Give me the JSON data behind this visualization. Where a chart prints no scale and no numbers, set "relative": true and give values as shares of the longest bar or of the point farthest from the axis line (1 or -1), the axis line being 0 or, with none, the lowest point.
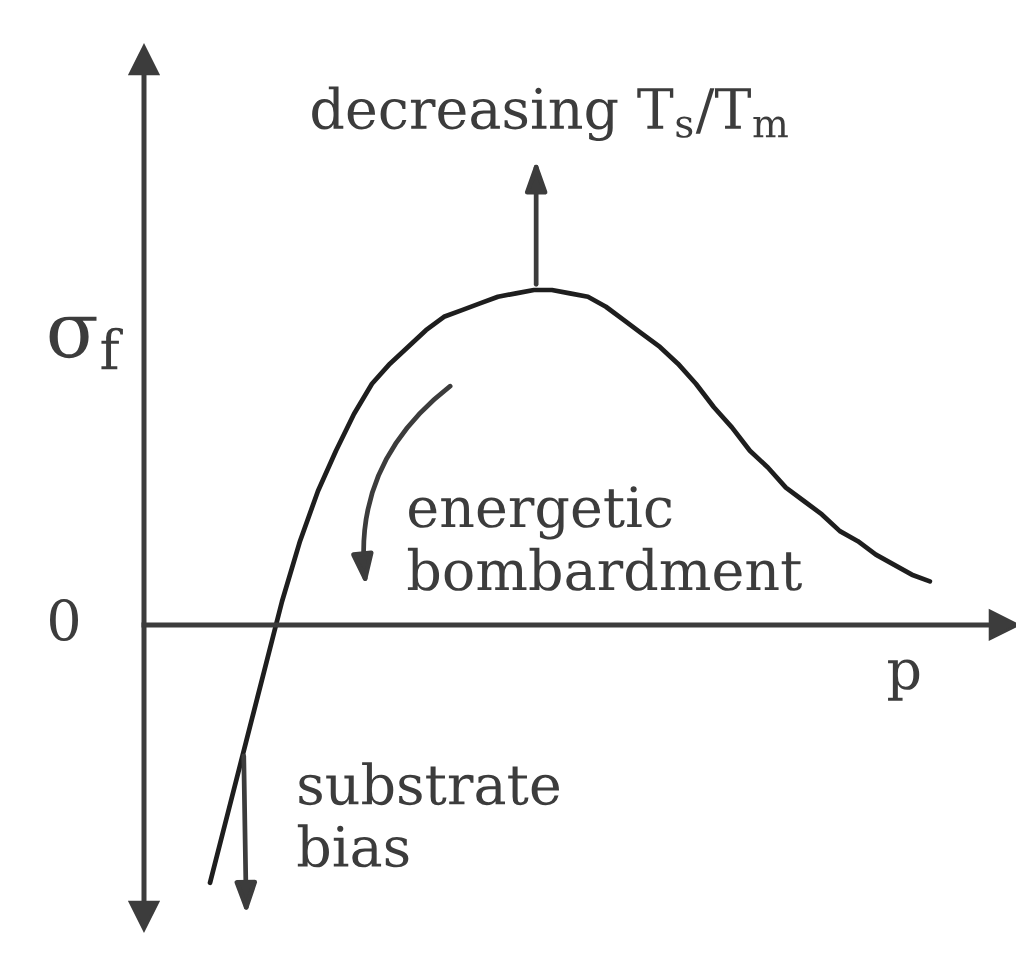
{
  "chart_data": {
    "type": "line",
    "relative": true,
    "line_style": "solid",
    "categories": [
      null,
      null,
      null,
      null,
      null,
      null,
      null,
      null,
      null,
      null,
      null,
      null,
      null,
      null,
      null,
      null,
      null,
      null,
      null,
      null,
      null,
      null,
      null,
      null,
      null,
      null,
      null,
      null,
      null,
      null,
      null,
      null,
      null,
      null,
      null,
      null,
      null,
      null,
      null,
      null,
      null
    ],
    "series": [
      {
        "color": "#1e1e1e",
        "values": [
          -0.77,
          -0.56,
          -0.35,
          -0.14,
          0.07,
          0.25,
          0.4,
          0.52,
          0.63,
          0.72,
          0.78,
          0.83,
          0.88,
          0.92,
          0.94,
          0.96,
          0.98,
          0.99,
          1.0,
          1.0,
          0.99,
          0.98,
          0.95,
          0.91,
          0.87,
          0.83,
          0.78,
          0.72,
          0.65,
          0.59,
          0.52,
          0.47,
          0.41,
          0.37,
          0.33,
          0.28,
          0.25,
          0.21,
          0.18,
          0.15,
          0.13
        ]
      }
    ],
    "xlabel": "p",
    "ylabel": "σ$_{f}$",
    "annotations": [
      "decreasing T$_{s}$/T$_{m}$",
      "energetic\nbombardment",
      "substrate\nbias",
      "0"
    ]
  }
}
